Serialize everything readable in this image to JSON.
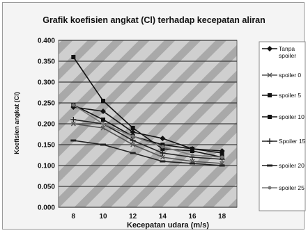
{
  "chart_data": {
    "type": "line",
    "title": "Grafik koefisien angkat (Cl) terhadap kecepatan aliran",
    "xlabel": "Kecepatan udara (m/s)",
    "ylabel": "Koefisien angkat (Cl)",
    "x": [
      8,
      10,
      12,
      14,
      16,
      18
    ],
    "ylim": [
      0,
      0.4
    ],
    "yticks": [
      "0.000",
      "0.050",
      "0.100",
      "0.150",
      "0.200",
      "0.250",
      "0.300",
      "0.350",
      "0.400"
    ],
    "grid": true,
    "legend": "right",
    "series": [
      {
        "name": "Tanpa spoiler",
        "values": [
          0.24,
          0.23,
          0.18,
          0.165,
          0.14,
          0.135
        ],
        "color": "#111111",
        "marker": "diamond"
      },
      {
        "name": "spoiler 0",
        "values": [
          0.2,
          0.19,
          0.15,
          0.12,
          0.11,
          0.105
        ],
        "color": "#555555",
        "marker": "x"
      },
      {
        "name": "spoiler 5",
        "values": [
          0.245,
          0.21,
          0.17,
          0.15,
          0.14,
          0.13
        ],
        "color": "#111111",
        "marker": "square"
      },
      {
        "name": "spoiler 10",
        "values": [
          0.36,
          0.255,
          0.19,
          0.14,
          0.135,
          0.12
        ],
        "color": "#111111",
        "marker": "square"
      },
      {
        "name": "Spoiler 15",
        "values": [
          0.21,
          0.2,
          0.16,
          0.13,
          0.12,
          0.115
        ],
        "color": "#222222",
        "marker": "plus"
      },
      {
        "name": "spoiler 20",
        "values": [
          0.16,
          0.15,
          0.13,
          0.11,
          0.105,
          0.1
        ],
        "color": "#222222",
        "marker": "dash"
      },
      {
        "name": "spoiler 25",
        "values": [
          0.245,
          0.2,
          0.17,
          0.145,
          0.125,
          0.12
        ],
        "color": "#777777",
        "marker": "dot"
      }
    ]
  }
}
